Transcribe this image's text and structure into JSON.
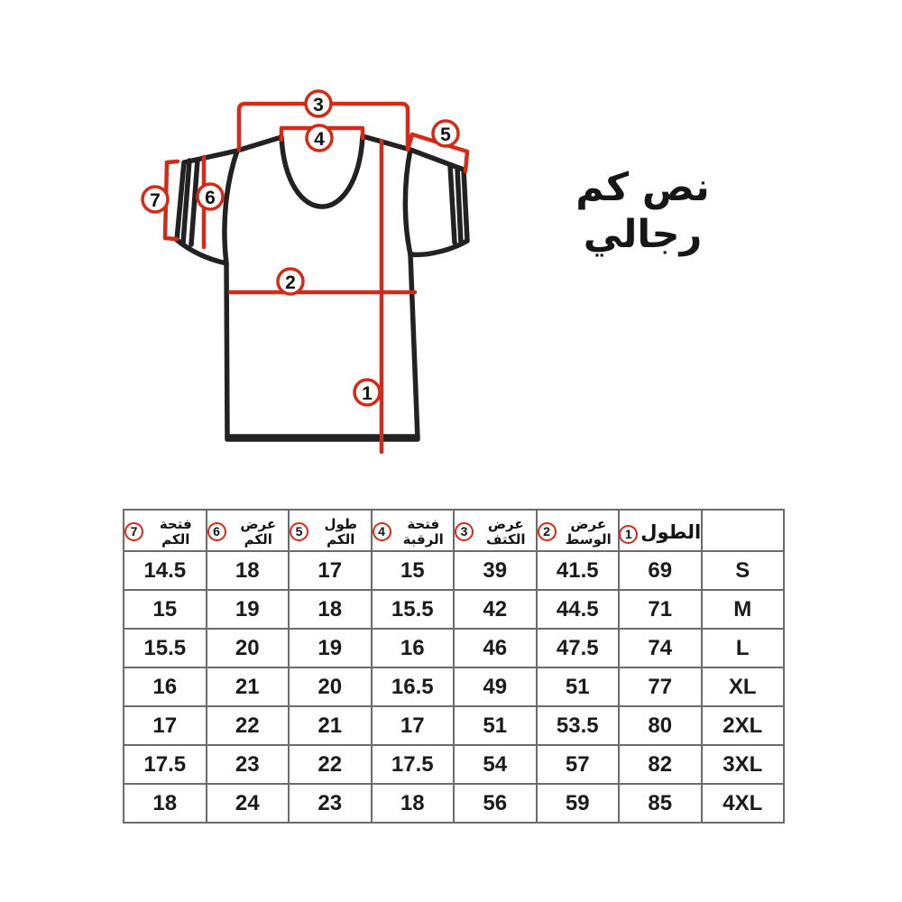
{
  "page": {
    "title": "نص كم رجالي"
  },
  "diagram": {
    "description": "t-shirt with numbered measurement indicators",
    "markers": [
      "1",
      "2",
      "3",
      "4",
      "5",
      "6",
      "7"
    ]
  },
  "table": {
    "headers": [
      {
        "label": "فتحة الكم",
        "num": "7"
      },
      {
        "label": "عرض الكم",
        "num": "6"
      },
      {
        "label": "طول الكم",
        "num": "5"
      },
      {
        "label": "فتحة الرقبة",
        "num": "4"
      },
      {
        "label": "عرض الكتف",
        "num": "3"
      },
      {
        "label": "عرض الوسط",
        "num": "2"
      },
      {
        "label": "الطول",
        "num": "1"
      },
      {
        "label": "",
        "num": ""
      }
    ],
    "rows": [
      [
        "14.5",
        "18",
        "17",
        "15",
        "39",
        "41.5",
        "69",
        "S"
      ],
      [
        "15",
        "19",
        "18",
        "15.5",
        "42",
        "44.5",
        "71",
        "M"
      ],
      [
        "15.5",
        "20",
        "19",
        "16",
        "46",
        "47.5",
        "74",
        "L"
      ],
      [
        "16",
        "21",
        "20",
        "16.5",
        "49",
        "51",
        "77",
        "XL"
      ],
      [
        "17",
        "22",
        "21",
        "17",
        "51",
        "53.5",
        "80",
        "2XL"
      ],
      [
        "17.5",
        "23",
        "22",
        "17.5",
        "54",
        "57",
        "82",
        "3XL"
      ],
      [
        "18",
        "24",
        "23",
        "18",
        "56",
        "59",
        "85",
        "4XL"
      ]
    ]
  },
  "colors": {
    "accent_red": "#d32b18",
    "ink_black": "#222222",
    "table_border": "#6b6b6b"
  }
}
